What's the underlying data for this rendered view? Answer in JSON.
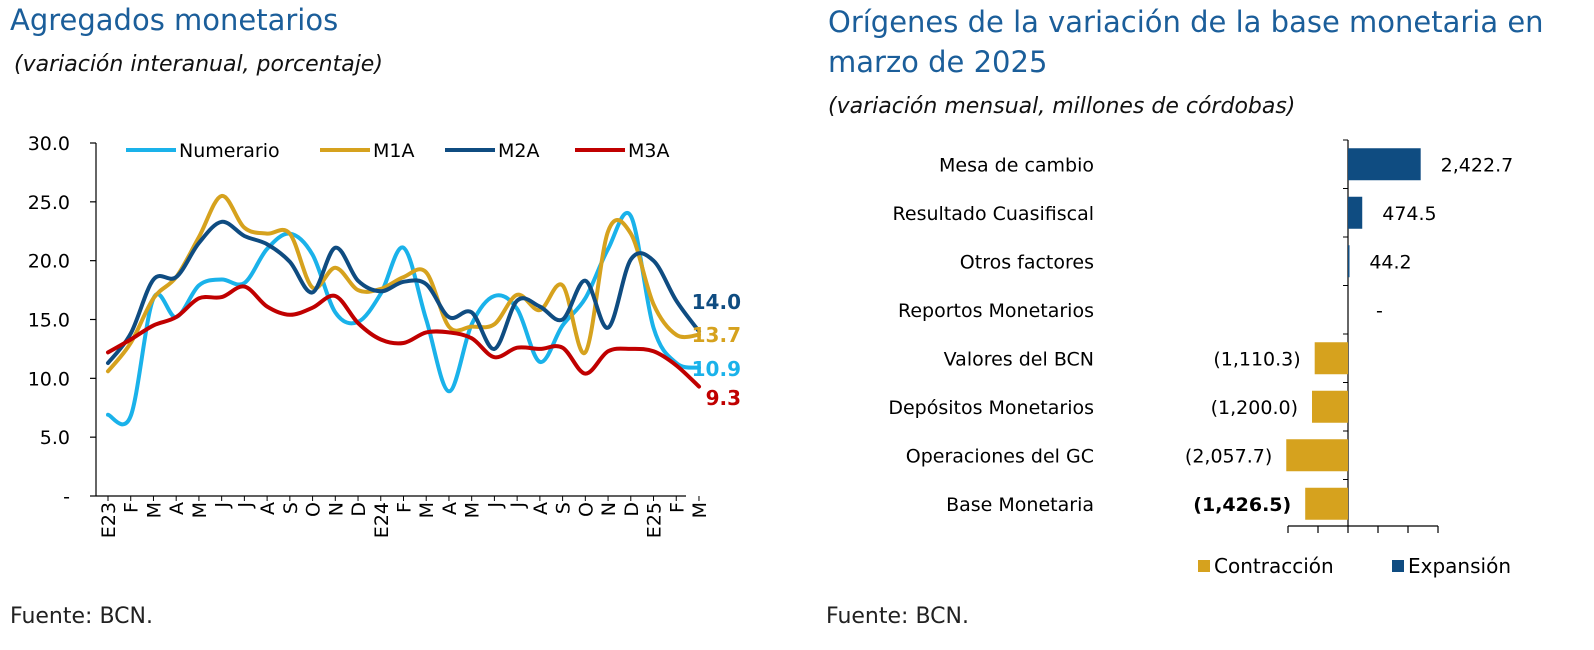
{
  "left_chart": {
    "title": "Agregados monetarios",
    "subtitle": "(variación interanual, porcentaje)",
    "source": "Fuente: BCN.",
    "colors": {
      "Numerario": "#1ab2ea",
      "M1A": "#d6a21e",
      "M2A": "#0f4c81",
      "M3A": "#c00000"
    },
    "end_labels": {
      "Numerario": "10.9",
      "M1A": "13.7",
      "M2A": "14.0",
      "M3A": "9.3"
    }
  },
  "right_chart": {
    "title_line1": "Orígenes de la variación de la base monetaria en",
    "title_line2": "marzo de 2025",
    "subtitle": "(variación mensual, millones de córdobas)",
    "source": "Fuente: BCN.",
    "legend": [
      {
        "label": "Contracción",
        "color": "#d6a21e"
      },
      {
        "label": "Expansión",
        "color": "#0f4c81"
      }
    ]
  },
  "chart_data": [
    {
      "type": "line",
      "title": "Agregados monetarios",
      "subtitle": "(variación interanual, porcentaje)",
      "x": [
        "E23",
        "F",
        "M",
        "A",
        "M",
        "J",
        "J",
        "A",
        "S",
        "O",
        "N",
        "D",
        "E24",
        "F",
        "M",
        "A",
        "M",
        "J",
        "J",
        "A",
        "S",
        "O",
        "N",
        "D",
        "E25",
        "F",
        "M"
      ],
      "ylim": [
        0,
        30
      ],
      "yticks": [
        "-",
        "5.0",
        "10.0",
        "15.0",
        "20.0",
        "25.0",
        "30.0"
      ],
      "grid": false,
      "legend_position": "top",
      "series": [
        {
          "name": "Numerario",
          "values": [
            6.9,
            6.8,
            16.8,
            15.2,
            17.9,
            18.4,
            18.1,
            21.0,
            22.3,
            20.5,
            15.6,
            14.8,
            17.2,
            21.1,
            15.0,
            8.9,
            14.6,
            17.0,
            15.9,
            11.4,
            14.5,
            16.8,
            21.0,
            23.8,
            14.3,
            11.3,
            10.9
          ]
        },
        {
          "name": "M1A",
          "values": [
            10.6,
            13.0,
            16.8,
            18.6,
            22.0,
            25.5,
            22.8,
            22.3,
            22.3,
            17.7,
            19.4,
            17.5,
            17.6,
            18.6,
            19.0,
            14.4,
            14.4,
            14.6,
            17.1,
            15.8,
            17.9,
            12.2,
            22.5,
            22.3,
            16.3,
            13.7,
            13.7
          ]
        },
        {
          "name": "M2A",
          "values": [
            11.3,
            13.8,
            18.4,
            18.6,
            21.5,
            23.3,
            22.1,
            21.4,
            19.9,
            17.3,
            21.1,
            18.3,
            17.4,
            18.2,
            18.0,
            15.2,
            15.6,
            12.5,
            16.6,
            16.1,
            15.0,
            18.3,
            14.3,
            20.1,
            20.0,
            16.6,
            14.0
          ]
        },
        {
          "name": "M3A",
          "values": [
            12.2,
            13.3,
            14.5,
            15.2,
            16.8,
            16.9,
            17.8,
            16.1,
            15.4,
            16.0,
            17.0,
            14.7,
            13.3,
            13.0,
            13.9,
            13.9,
            13.4,
            11.8,
            12.6,
            12.5,
            12.6,
            10.4,
            12.3,
            12.5,
            12.3,
            11.1,
            9.3
          ]
        }
      ]
    },
    {
      "type": "bar",
      "orientation": "horizontal",
      "title": "Orígenes de la variación de la base monetaria en marzo de 2025",
      "subtitle": "(variación mensual, millones de córdobas)",
      "categories": [
        "Mesa de cambio",
        "Resultado Cuasifiscal",
        "Otros factores",
        "Reportos Monetarios",
        "Valores del BCN",
        "Depósitos Monetarios",
        "Operaciones del GC",
        "Base Monetaria"
      ],
      "values": [
        2422.7,
        474.5,
        44.2,
        0,
        -1110.3,
        -1200.0,
        -2057.7,
        -1426.5
      ],
      "data_labels": [
        "2,422.7",
        "474.5",
        "44.2",
        "-",
        "(1,110.3)",
        "(1,200.0)",
        "(2,057.7)",
        "(1,426.5)"
      ],
      "xlim": [
        -2000,
        3000
      ],
      "legend": [
        "Contracción",
        "Expansión"
      ],
      "legend_position": "bottom-right"
    }
  ]
}
